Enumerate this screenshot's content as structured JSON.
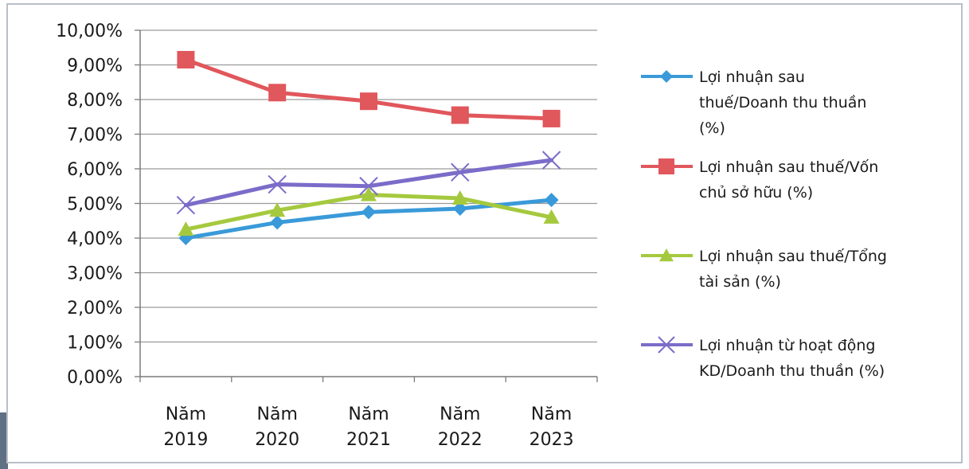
{
  "chart_data": {
    "type": "line",
    "categories": [
      [
        "Năm",
        "2019"
      ],
      [
        "Năm",
        "2020"
      ],
      [
        "Năm",
        "2021"
      ],
      [
        "Năm",
        "2022"
      ],
      [
        "Năm",
        "2023"
      ]
    ],
    "y_ticks": [
      "0,00%",
      "1,00%",
      "2,00%",
      "3,00%",
      "4,00%",
      "5,00%",
      "6,00%",
      "7,00%",
      "8,00%",
      "9,00%",
      "10,00%"
    ],
    "ylim": [
      0,
      10
    ],
    "grid": true,
    "legend_position": "right",
    "series": [
      {
        "name_lines": [
          "Lợi nhuận sau",
          "thuế/Doanh thu thuần",
          "(%)"
        ],
        "values": [
          4.0,
          4.45,
          4.75,
          4.85,
          5.1
        ],
        "color": "#3a9ad9",
        "marker": "diamond"
      },
      {
        "name_lines": [
          "Lợi nhuận sau thuế/Vốn",
          "chủ sở hữu (%)"
        ],
        "values": [
          9.15,
          8.2,
          7.95,
          7.55,
          7.45
        ],
        "color": "#e0575c",
        "marker": "square"
      },
      {
        "name_lines": [
          "Lợi nhuận sau thuế/Tổng",
          "tài sản (%)"
        ],
        "values": [
          4.25,
          4.8,
          5.25,
          5.15,
          4.6
        ],
        "color": "#a5c93e",
        "marker": "triangle"
      },
      {
        "name_lines": [
          "Lợi nhuận từ hoạt động",
          "KD/Doanh thu thuần (%)"
        ],
        "values": [
          4.95,
          5.55,
          5.5,
          5.9,
          6.25
        ],
        "color": "#7b6cc9",
        "marker": "x"
      }
    ]
  }
}
